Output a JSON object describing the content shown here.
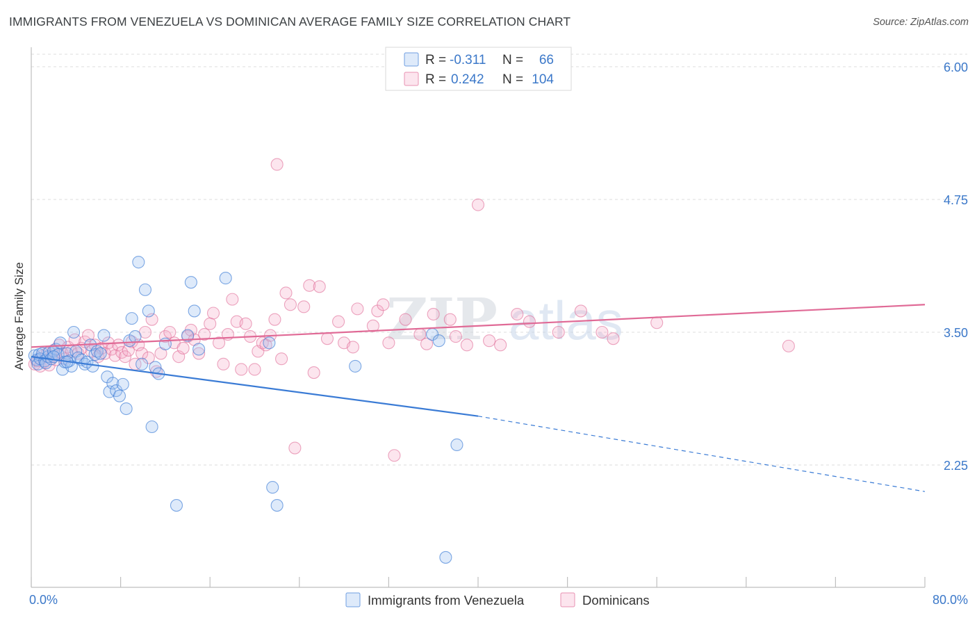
{
  "title": "IMMIGRANTS FROM VENEZUELA VS DOMINICAN AVERAGE FAMILY SIZE CORRELATION CHART",
  "source": "Source: ZipAtlas.com",
  "colors": {
    "blue": "#3a7bd5",
    "blue_fill": "rgba(160,196,240,0.35)",
    "pink": "#e06a96",
    "pink_fill": "rgba(244,170,198,0.30)",
    "tick_text": "#3b78c9",
    "grid": "#dcdcdc"
  },
  "legend": {
    "rows": [
      {
        "r_label": "R = ",
        "r_value": "-0.311",
        "n_label": "N = ",
        "n_value": "66"
      },
      {
        "r_label": "R = ",
        "r_value": "0.242",
        "n_label": "N = ",
        "n_value": "104"
      }
    ]
  },
  "bottom_legend": [
    "Immigrants from Venezuela",
    "Dominicans"
  ],
  "watermark": {
    "zip": "ZIP",
    "atlas": "atlas"
  },
  "chart_data": {
    "type": "scatter",
    "title": "IMMIGRANTS FROM VENEZUELA VS DOMINICAN AVERAGE FAMILY SIZE CORRELATION CHART",
    "xlabel": "",
    "ylabel": "Average Family Size",
    "xlim": [
      0,
      80
    ],
    "ylim": [
      1.25,
      6.1
    ],
    "x_tick_labels": [
      "0.0%",
      "80.0%"
    ],
    "y_ticks": [
      2.25,
      3.5,
      4.75,
      6.0
    ],
    "y_tick_labels": [
      "2.25",
      "3.50",
      "4.75",
      "6.00"
    ],
    "grid": "horizontal dashed",
    "legend_position": "top-center",
    "series": [
      {
        "name": "Immigrants from Venezuela",
        "color": "#3a7bd5",
        "r": -0.311,
        "n": 66,
        "trend": {
          "x0": 0,
          "y0": 3.27,
          "x1": 40,
          "y1": 2.71,
          "dashed_to_x": 80,
          "dashed_to_y": 2.0
        },
        "points": [
          [
            0.3,
            3.28
          ],
          [
            0.5,
            3.24
          ],
          [
            0.6,
            3.2
          ],
          [
            0.7,
            3.29
          ],
          [
            0.8,
            3.25
          ],
          [
            1.0,
            3.3
          ],
          [
            1.2,
            3.23
          ],
          [
            1.3,
            3.21
          ],
          [
            1.5,
            3.27
          ],
          [
            1.6,
            3.31
          ],
          [
            1.8,
            3.25
          ],
          [
            2.0,
            3.32
          ],
          [
            2.2,
            3.34
          ],
          [
            2.4,
            3.29
          ],
          [
            2.6,
            3.4
          ],
          [
            2.8,
            3.15
          ],
          [
            3.0,
            3.22
          ],
          [
            3.2,
            3.3
          ],
          [
            3.4,
            3.23
          ],
          [
            3.6,
            3.18
          ],
          [
            3.8,
            3.5
          ],
          [
            4.0,
            3.32
          ],
          [
            4.2,
            3.26
          ],
          [
            4.5,
            3.24
          ],
          [
            4.8,
            3.2
          ],
          [
            5.0,
            3.22
          ],
          [
            5.3,
            3.38
          ],
          [
            5.5,
            3.18
          ],
          [
            5.7,
            3.29
          ],
          [
            5.9,
            3.32
          ],
          [
            6.2,
            3.3
          ],
          [
            6.5,
            3.47
          ],
          [
            6.8,
            3.08
          ],
          [
            7.0,
            2.94
          ],
          [
            7.3,
            3.02
          ],
          [
            7.6,
            2.95
          ],
          [
            7.9,
            2.9
          ],
          [
            8.2,
            3.01
          ],
          [
            8.5,
            2.78
          ],
          [
            8.8,
            3.42
          ],
          [
            9.0,
            3.63
          ],
          [
            9.3,
            3.46
          ],
          [
            9.6,
            4.16
          ],
          [
            9.9,
            3.2
          ],
          [
            10.2,
            3.9
          ],
          [
            10.5,
            3.7
          ],
          [
            10.8,
            2.61
          ],
          [
            11.1,
            3.17
          ],
          [
            11.4,
            3.11
          ],
          [
            12.0,
            3.39
          ],
          [
            13.0,
            1.87
          ],
          [
            14.0,
            3.47
          ],
          [
            14.3,
            3.97
          ],
          [
            14.6,
            3.7
          ],
          [
            15.0,
            3.34
          ],
          [
            17.4,
            4.01
          ],
          [
            21.3,
            3.4
          ],
          [
            21.6,
            2.04
          ],
          [
            22.0,
            1.87
          ],
          [
            29.0,
            3.18
          ],
          [
            35.9,
            3.48
          ],
          [
            36.5,
            3.42
          ],
          [
            37.1,
            1.38
          ],
          [
            38.1,
            2.44
          ],
          [
            3.2,
            3.22
          ],
          [
            2.0,
            3.27
          ]
        ]
      },
      {
        "name": "Dominicans",
        "color": "#e06a96",
        "r": 0.242,
        "n": 104,
        "trend": {
          "x0": 0,
          "y0": 3.36,
          "x1": 80,
          "y1": 3.76
        },
        "points": [
          [
            0.3,
            3.2
          ],
          [
            0.5,
            3.23
          ],
          [
            0.8,
            3.18
          ],
          [
            1.0,
            3.28
          ],
          [
            1.2,
            3.22
          ],
          [
            1.4,
            3.3
          ],
          [
            1.6,
            3.19
          ],
          [
            1.8,
            3.27
          ],
          [
            2.0,
            3.33
          ],
          [
            2.2,
            3.24
          ],
          [
            2.5,
            3.38
          ],
          [
            2.8,
            3.3
          ],
          [
            3.0,
            3.25
          ],
          [
            3.3,
            3.36
          ],
          [
            3.6,
            3.32
          ],
          [
            3.9,
            3.43
          ],
          [
            4.2,
            3.3
          ],
          [
            4.5,
            3.35
          ],
          [
            4.8,
            3.41
          ],
          [
            5.1,
            3.47
          ],
          [
            5.4,
            3.32
          ],
          [
            5.7,
            3.38
          ],
          [
            6.0,
            3.27
          ],
          [
            6.3,
            3.35
          ],
          [
            6.6,
            3.3
          ],
          [
            6.9,
            3.4
          ],
          [
            7.2,
            3.34
          ],
          [
            7.5,
            3.28
          ],
          [
            7.8,
            3.38
          ],
          [
            8.1,
            3.31
          ],
          [
            8.4,
            3.27
          ],
          [
            8.7,
            3.33
          ],
          [
            9.0,
            3.41
          ],
          [
            9.3,
            3.2
          ],
          [
            9.6,
            3.38
          ],
          [
            9.9,
            3.3
          ],
          [
            10.2,
            3.5
          ],
          [
            10.5,
            3.26
          ],
          [
            10.8,
            3.62
          ],
          [
            11.2,
            3.13
          ],
          [
            11.6,
            3.3
          ],
          [
            12.0,
            3.46
          ],
          [
            12.4,
            3.5
          ],
          [
            12.8,
            3.4
          ],
          [
            13.2,
            3.27
          ],
          [
            13.6,
            3.35
          ],
          [
            14.0,
            3.46
          ],
          [
            14.3,
            3.52
          ],
          [
            14.6,
            3.43
          ],
          [
            15.0,
            3.3
          ],
          [
            15.5,
            3.48
          ],
          [
            16.0,
            3.58
          ],
          [
            16.3,
            3.68
          ],
          [
            16.8,
            3.4
          ],
          [
            17.2,
            3.2
          ],
          [
            17.6,
            3.48
          ],
          [
            18.0,
            3.81
          ],
          [
            18.4,
            3.6
          ],
          [
            18.8,
            3.15
          ],
          [
            19.2,
            3.58
          ],
          [
            19.6,
            3.46
          ],
          [
            20.0,
            3.15
          ],
          [
            20.3,
            3.32
          ],
          [
            20.7,
            3.4
          ],
          [
            21.0,
            3.38
          ],
          [
            21.4,
            3.47
          ],
          [
            21.8,
            3.62
          ],
          [
            22.0,
            5.08
          ],
          [
            22.4,
            3.25
          ],
          [
            22.8,
            3.87
          ],
          [
            23.2,
            3.76
          ],
          [
            23.6,
            2.41
          ],
          [
            24.4,
            3.74
          ],
          [
            24.9,
            3.94
          ],
          [
            25.3,
            3.12
          ],
          [
            25.8,
            3.93
          ],
          [
            26.5,
            3.44
          ],
          [
            27.5,
            3.6
          ],
          [
            28.0,
            3.4
          ],
          [
            28.8,
            3.36
          ],
          [
            29.2,
            3.72
          ],
          [
            30.6,
            3.56
          ],
          [
            31.0,
            3.7
          ],
          [
            31.5,
            3.76
          ],
          [
            32.0,
            3.4
          ],
          [
            32.5,
            2.34
          ],
          [
            33.5,
            3.62
          ],
          [
            34.8,
            3.48
          ],
          [
            35.4,
            3.39
          ],
          [
            36.0,
            3.67
          ],
          [
            37.5,
            3.62
          ],
          [
            38.0,
            3.46
          ],
          [
            39.0,
            3.38
          ],
          [
            40.0,
            4.7
          ],
          [
            41.0,
            3.42
          ],
          [
            42.0,
            3.38
          ],
          [
            43.5,
            3.67
          ],
          [
            44.6,
            3.6
          ],
          [
            47.2,
            3.5
          ],
          [
            49.2,
            3.7
          ],
          [
            51.1,
            3.5
          ],
          [
            52.1,
            3.44
          ],
          [
            56.0,
            3.59
          ],
          [
            67.8,
            3.37
          ]
        ]
      }
    ]
  }
}
